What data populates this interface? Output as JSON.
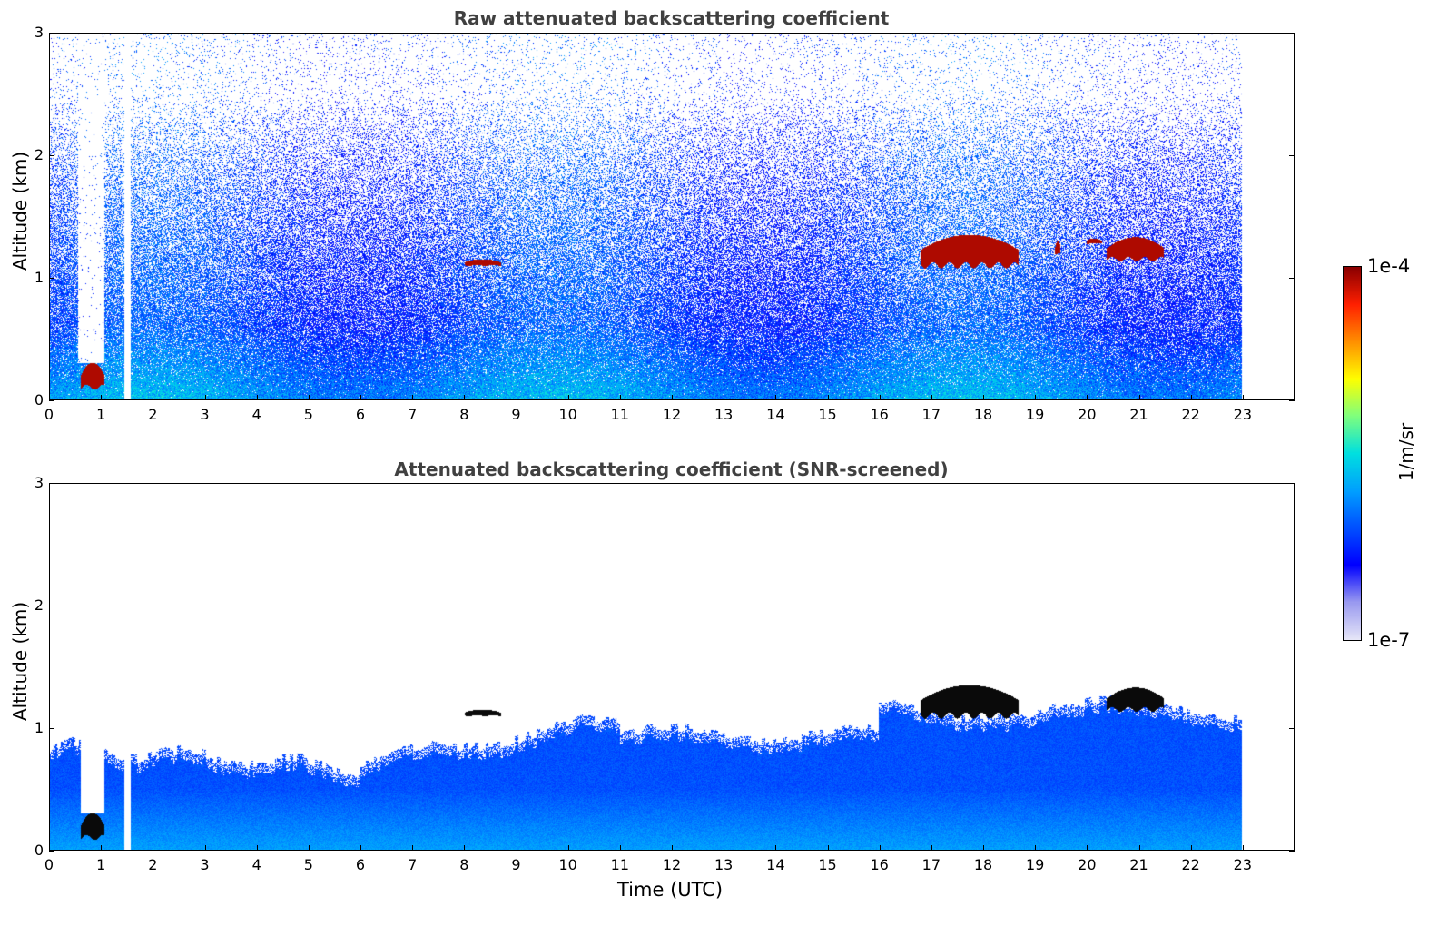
{
  "chart_data": [
    {
      "type": "heatmap",
      "title": "Raw attenuated backscattering coefficient",
      "xlabel": "",
      "ylabel": "Altitude (km)",
      "xlim": [
        0,
        24
      ],
      "ylim": [
        0,
        3
      ],
      "x_ticks": [
        "0",
        "1",
        "2",
        "3",
        "4",
        "5",
        "6",
        "7",
        "8",
        "9",
        "10",
        "11",
        "12",
        "13",
        "14",
        "15",
        "16",
        "17",
        "18",
        "19",
        "20",
        "21",
        "22",
        "23"
      ],
      "y_ticks": [
        "0",
        "1",
        "2",
        "3"
      ],
      "data_end_hour": 23,
      "gap_hour": 1.5,
      "noise_cap_km": 3.0,
      "cloud_layers": [
        {
          "start": 0.6,
          "end": 1.05,
          "alt_low": 0.1,
          "alt_high": 0.3
        },
        {
          "start": 8.0,
          "end": 8.7,
          "alt_low": 1.1,
          "alt_high": 1.15
        },
        {
          "start": 16.8,
          "end": 18.7,
          "alt_low": 1.1,
          "alt_high": 1.35
        },
        {
          "start": 19.4,
          "end": 19.5,
          "alt_low": 1.2,
          "alt_high": 1.3
        },
        {
          "start": 20.0,
          "end": 20.3,
          "alt_low": 1.28,
          "alt_high": 1.32
        },
        {
          "start": 20.4,
          "end": 21.5,
          "alt_low": 1.15,
          "alt_high": 1.33
        }
      ]
    },
    {
      "type": "heatmap",
      "title": "Attenuated backscattering coefficient (SNR-screened)",
      "xlabel": "Time (UTC)",
      "ylabel": "Altitude (km)",
      "xlim": [
        0,
        24
      ],
      "ylim": [
        0,
        3
      ],
      "x_ticks": [
        "0",
        "1",
        "2",
        "3",
        "4",
        "5",
        "6",
        "7",
        "8",
        "9",
        "10",
        "11",
        "12",
        "13",
        "14",
        "15",
        "16",
        "17",
        "18",
        "19",
        "20",
        "21",
        "22",
        "23"
      ],
      "y_ticks": [
        "0",
        "1",
        "2",
        "3"
      ],
      "data_end_hour": 23,
      "gap_hour": 1.5,
      "cloud_layers": [
        {
          "start": 0.6,
          "end": 1.05,
          "alt_low": 0.1,
          "alt_high": 0.3
        },
        {
          "start": 8.0,
          "end": 8.7,
          "alt_low": 1.1,
          "alt_high": 1.15
        },
        {
          "start": 16.8,
          "end": 18.7,
          "alt_low": 1.1,
          "alt_high": 1.35
        },
        {
          "start": 20.4,
          "end": 21.5,
          "alt_low": 1.15,
          "alt_high": 1.33
        }
      ]
    }
  ],
  "colorbar": {
    "unit_label": "1/m/sr",
    "max_label": "1e-4",
    "min_label": "1e-7",
    "colors": [
      "#e6e6f8",
      "#9a9af0",
      "#0000ff",
      "#0050ff",
      "#00a0ff",
      "#00e0e0",
      "#7fff7f",
      "#ffff00",
      "#ff9000",
      "#ff2000",
      "#8b0000"
    ]
  }
}
